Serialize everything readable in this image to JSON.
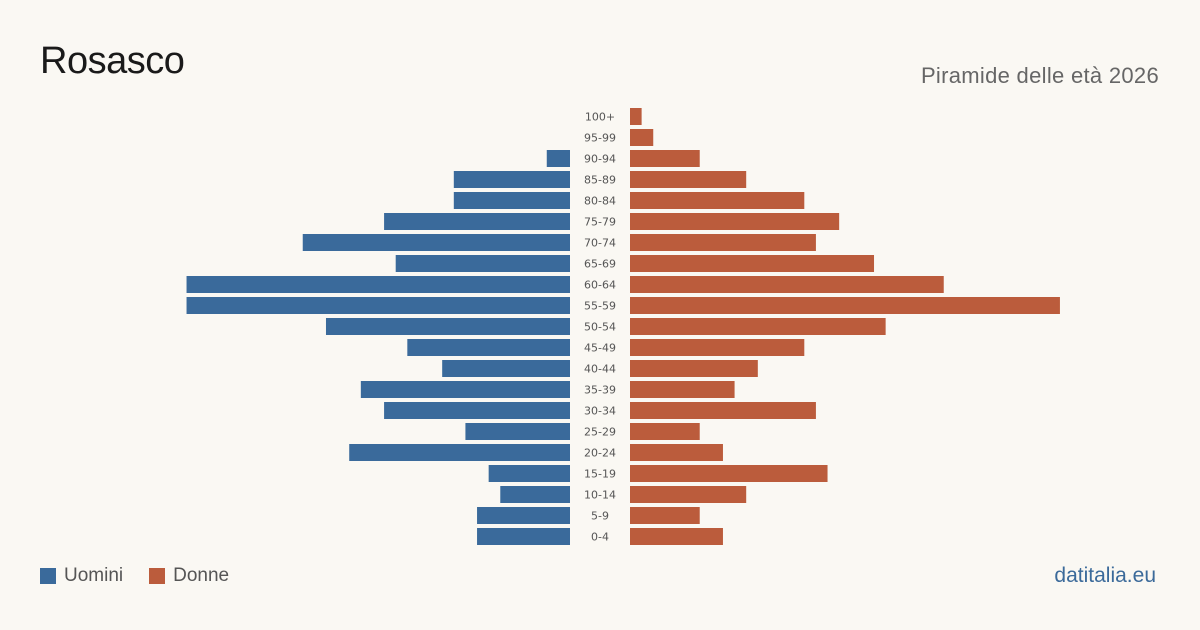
{
  "header": {
    "title": "Rosasco",
    "subtitle": "Piramide delle età 2026"
  },
  "legend": {
    "men_label": "Uomini",
    "women_label": "Donne"
  },
  "source": "datitalia.eu",
  "colors": {
    "men": "#3a6a9b",
    "women": "#bb5c3c",
    "background": "#faf8f3"
  },
  "chart_data": {
    "type": "bar",
    "orientation": "horizontal-pyramid",
    "categories": [
      "100+",
      "95-99",
      "90-94",
      "85-89",
      "80-84",
      "75-79",
      "70-74",
      "65-69",
      "60-64",
      "55-59",
      "50-54",
      "45-49",
      "40-44",
      "35-39",
      "30-34",
      "25-29",
      "20-24",
      "15-19",
      "10-14",
      "5-9",
      "0-4"
    ],
    "series": [
      {
        "name": "Uomini",
        "values": [
          0,
          0,
          2,
          10,
          10,
          16,
          23,
          15,
          33,
          33,
          21,
          14,
          11,
          18,
          16,
          9,
          19,
          7,
          6,
          8,
          8
        ]
      },
      {
        "name": "Donne",
        "values": [
          1,
          2,
          6,
          10,
          15,
          18,
          16,
          21,
          27,
          37,
          22,
          15,
          11,
          9,
          16,
          6,
          8,
          17,
          10,
          6,
          8
        ]
      }
    ]
  }
}
